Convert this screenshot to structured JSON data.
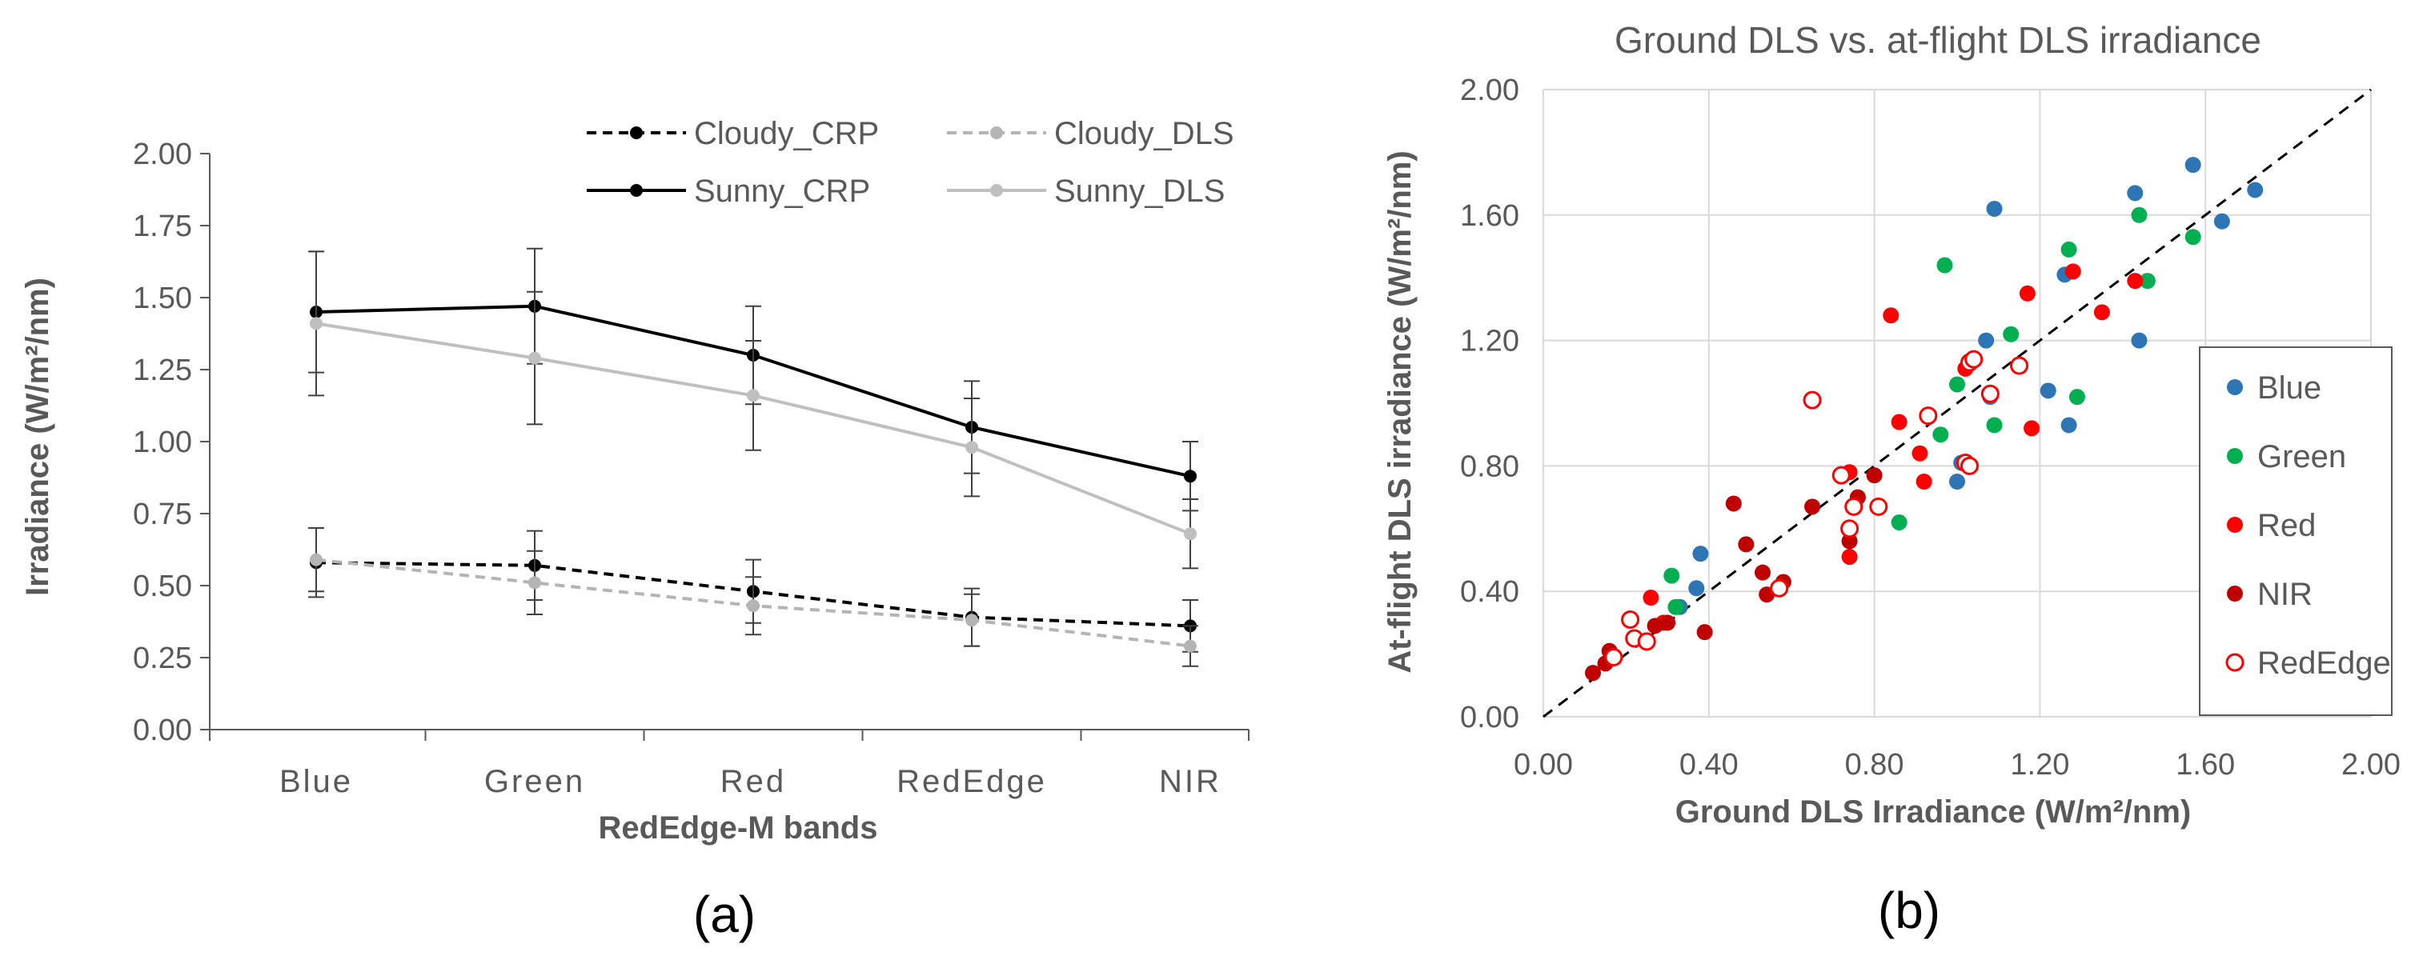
{
  "colors": {
    "cloudy_crp": "#000000",
    "cloudy_dls": "#b4b4b4",
    "sunny_crp": "#000000",
    "sunny_dls": "#bfbfbf",
    "blue": "#2e75b6",
    "green": "#00b050",
    "red": "#ff0000",
    "nir": "#c00000",
    "rededge": "#ff0000",
    "axis": "#595959",
    "grid": "#d9d9d9"
  },
  "panels": {
    "a": "(a)",
    "b": "(b)"
  },
  "chart_data": [
    {
      "type": "line",
      "panel": "(a)",
      "title": "",
      "xlabel": "RedEdge-M bands",
      "ylabel": "Irradiance (W/m²/nm)",
      "categories": [
        "Blue",
        "Green",
        "Red",
        "RedEdge",
        "NIR"
      ],
      "ylim": [
        0,
        2
      ],
      "yticks": [
        "0.00",
        "0.25",
        "0.50",
        "0.75",
        "1.00",
        "1.25",
        "1.50",
        "1.75",
        "2.00"
      ],
      "grid": false,
      "legend": "top-right",
      "series": [
        {
          "name": "Cloudy_CRP",
          "style": "dashed",
          "color": "#000000",
          "values": [
            0.58,
            0.57,
            0.48,
            0.39,
            0.36
          ],
          "error": [
            0.12,
            0.12,
            0.11,
            0.1,
            0.09
          ]
        },
        {
          "name": "Cloudy_DLS",
          "style": "dashed",
          "color": "#b4b4b4",
          "values": [
            0.59,
            0.51,
            0.43,
            0.38,
            0.29
          ],
          "error": [
            0.11,
            0.11,
            0.1,
            0.09,
            0.07
          ]
        },
        {
          "name": "Sunny_CRP",
          "style": "solid",
          "color": "#000000",
          "values": [
            1.45,
            1.47,
            1.3,
            1.05,
            0.88
          ],
          "error": [
            0.21,
            0.2,
            0.17,
            0.16,
            0.12
          ]
        },
        {
          "name": "Sunny_DLS",
          "style": "solid",
          "color": "#bfbfbf",
          "values": [
            1.41,
            1.29,
            1.16,
            0.98,
            0.68
          ],
          "error": [
            0.25,
            0.23,
            0.19,
            0.17,
            0.12
          ]
        }
      ]
    },
    {
      "type": "scatter",
      "panel": "(b)",
      "title": "Ground DLS vs. at-flight DLS irradiance",
      "xlabel": "Ground DLS Irradiance (W/m²/nm)",
      "ylabel": "At-flight DLS irradiance (W/m²/nm)",
      "xlim": [
        0,
        2
      ],
      "ylim": [
        0,
        2
      ],
      "xticks": [
        "0.00",
        "0.40",
        "0.80",
        "1.20",
        "1.60",
        "2.00"
      ],
      "yticks": [
        "0.00",
        "0.40",
        "0.80",
        "1.20",
        "1.60",
        "2.00"
      ],
      "grid": true,
      "legend": "right",
      "reference_line": "1:1",
      "series": [
        {
          "name": "Blue",
          "marker": "filled",
          "color": "#2e75b6",
          "points": [
            [
              0.38,
              0.52
            ],
            [
              0.37,
              0.41
            ],
            [
              0.33,
              0.35
            ],
            [
              1.0,
              0.75
            ],
            [
              1.01,
              0.81
            ],
            [
              1.07,
              1.2
            ],
            [
              1.09,
              1.62
            ],
            [
              1.08,
              1.02
            ],
            [
              1.22,
              1.04
            ],
            [
              1.26,
              1.41
            ],
            [
              1.27,
              0.93
            ],
            [
              1.43,
              1.67
            ],
            [
              1.44,
              1.2
            ],
            [
              1.57,
              1.76
            ],
            [
              1.64,
              1.58
            ],
            [
              1.72,
              1.68
            ]
          ]
        },
        {
          "name": "Green",
          "marker": "filled",
          "color": "#00b050",
          "points": [
            [
              0.31,
              0.45
            ],
            [
              0.32,
              0.35
            ],
            [
              0.86,
              0.62
            ],
            [
              0.96,
              0.9
            ],
            [
              0.97,
              1.44
            ],
            [
              1.0,
              1.06
            ],
            [
              1.09,
              0.93
            ],
            [
              1.13,
              1.22
            ],
            [
              1.27,
              1.49
            ],
            [
              1.29,
              1.02
            ],
            [
              1.44,
              1.6
            ],
            [
              1.46,
              1.39
            ],
            [
              1.57,
              1.53
            ]
          ]
        },
        {
          "name": "Red",
          "marker": "filled",
          "color": "#ff0000",
          "points": [
            [
              0.26,
              0.38
            ],
            [
              0.29,
              0.3
            ],
            [
              0.74,
              0.51
            ],
            [
              0.74,
              0.78
            ],
            [
              0.84,
              1.28
            ],
            [
              0.86,
              0.94
            ],
            [
              0.91,
              0.84
            ],
            [
              0.92,
              0.75
            ],
            [
              1.02,
              1.11
            ],
            [
              1.17,
              1.35
            ],
            [
              1.18,
              0.92
            ],
            [
              1.28,
              1.42
            ],
            [
              1.35,
              1.29
            ],
            [
              1.43,
              1.39
            ]
          ]
        },
        {
          "name": "NIR",
          "marker": "filled",
          "color": "#c00000",
          "points": [
            [
              0.12,
              0.14
            ],
            [
              0.15,
              0.17
            ],
            [
              0.16,
              0.21
            ],
            [
              0.27,
              0.29
            ],
            [
              0.3,
              0.3
            ],
            [
              0.39,
              0.27
            ],
            [
              0.46,
              0.68
            ],
            [
              0.49,
              0.55
            ],
            [
              0.53,
              0.46
            ],
            [
              0.54,
              0.39
            ],
            [
              0.57,
              0.41
            ],
            [
              0.58,
              0.43
            ],
            [
              0.65,
              0.67
            ],
            [
              0.74,
              0.56
            ],
            [
              0.76,
              0.7
            ],
            [
              0.8,
              0.77
            ]
          ]
        },
        {
          "name": "RedEdge",
          "marker": "hollow",
          "color": "#ff0000",
          "points": [
            [
              0.17,
              0.19
            ],
            [
              0.21,
              0.31
            ],
            [
              0.22,
              0.25
            ],
            [
              0.25,
              0.24
            ],
            [
              0.57,
              0.41
            ],
            [
              0.65,
              1.01
            ],
            [
              0.72,
              0.77
            ],
            [
              0.74,
              0.6
            ],
            [
              0.75,
              0.67
            ],
            [
              0.81,
              0.67
            ],
            [
              0.93,
              0.96
            ],
            [
              1.02,
              0.81
            ],
            [
              1.03,
              0.8
            ],
            [
              1.03,
              1.13
            ],
            [
              1.04,
              1.14
            ],
            [
              1.08,
              1.03
            ],
            [
              1.15,
              1.12
            ]
          ]
        }
      ]
    }
  ]
}
